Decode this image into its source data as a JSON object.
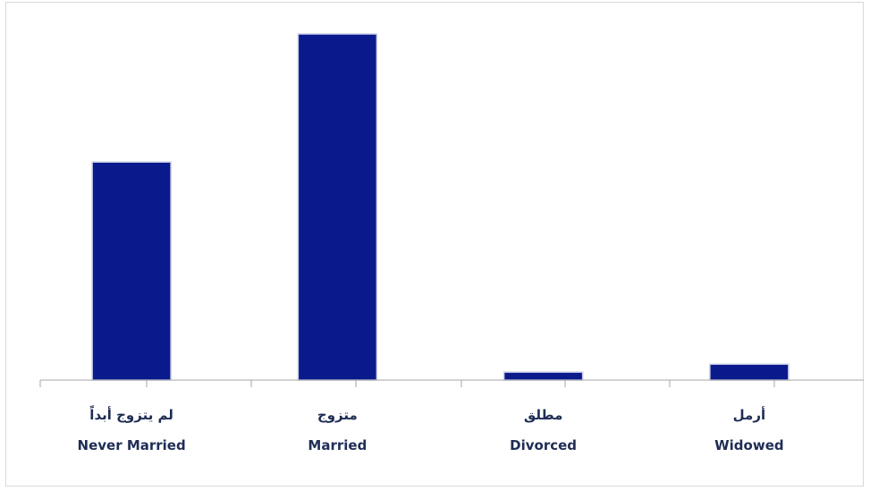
{
  "chart_data": {
    "type": "bar",
    "categories": [
      {
        "ar": "لم يتزوج أبداً",
        "en": "Never Married"
      },
      {
        "ar": "متزوج",
        "en": "Married"
      },
      {
        "ar": "مطلق",
        "en": "Divorced"
      },
      {
        "ar": "أرمل",
        "en": "Widowed"
      }
    ],
    "values": [
      63,
      100,
      2.3,
      4.6
    ],
    "ylim": [
      0,
      100
    ],
    "grid": false,
    "legend": "none",
    "colors": {
      "bar": "#0a1a8c",
      "bar_border": "#c9cde6",
      "axis": "#a6a6a6",
      "label": "#1f2d55"
    }
  }
}
